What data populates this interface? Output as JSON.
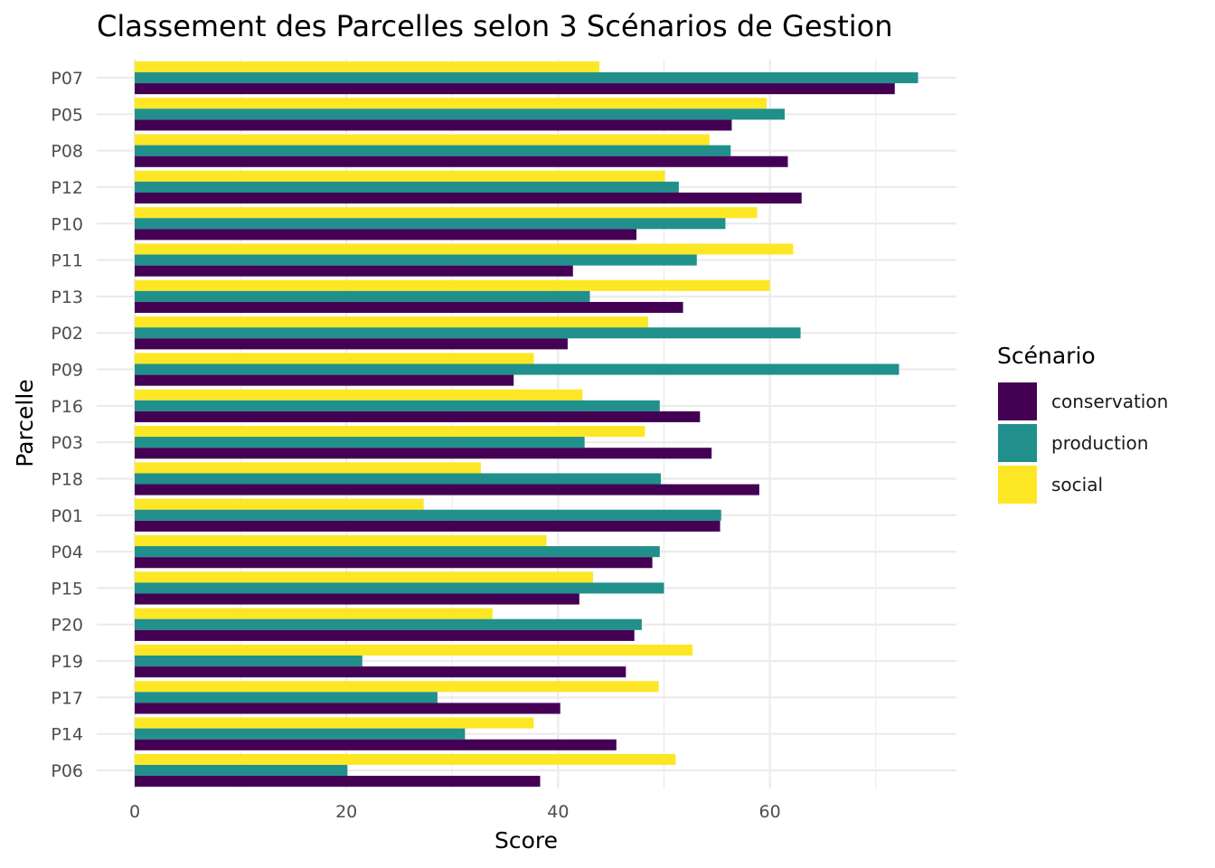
{
  "chart_data": {
    "type": "bar",
    "orientation": "horizontal",
    "title": "Classement des Parcelles selon 3 Scénarios de Gestion",
    "xlabel": "Score",
    "ylabel": "Parcelle",
    "xlim": [
      -6,
      77.6
    ],
    "xticks": [
      0,
      20,
      40,
      60
    ],
    "xtick_labels": [
      "0",
      "20",
      "40",
      "60"
    ],
    "grid": true,
    "legend": {
      "title": "Scénario",
      "position": "right"
    },
    "categories": [
      "P07",
      "P05",
      "P08",
      "P12",
      "P10",
      "P11",
      "P13",
      "P02",
      "P09",
      "P16",
      "P03",
      "P18",
      "P01",
      "P04",
      "P15",
      "P20",
      "P19",
      "P17",
      "P14",
      "P06"
    ],
    "series": [
      {
        "name": "conservation",
        "color": "#440154",
        "values": [
          71.8,
          56.4,
          61.7,
          63.0,
          47.4,
          41.4,
          51.8,
          40.9,
          35.8,
          53.4,
          54.5,
          59.0,
          55.3,
          48.9,
          42.0,
          47.2,
          46.4,
          40.2,
          45.5,
          38.3
        ]
      },
      {
        "name": "production",
        "color": "#21908C",
        "values": [
          74.0,
          61.4,
          56.3,
          51.4,
          55.8,
          53.1,
          43.0,
          62.9,
          72.2,
          49.6,
          42.5,
          49.7,
          55.4,
          49.6,
          50.0,
          47.9,
          21.5,
          28.6,
          31.2,
          20.1
        ]
      },
      {
        "name": "social",
        "color": "#FDE725",
        "values": [
          43.9,
          59.7,
          54.3,
          50.1,
          58.8,
          62.2,
          60.0,
          48.5,
          37.7,
          42.3,
          48.2,
          32.7,
          27.3,
          38.9,
          43.3,
          33.8,
          52.7,
          49.5,
          37.7,
          51.1
        ]
      }
    ]
  }
}
